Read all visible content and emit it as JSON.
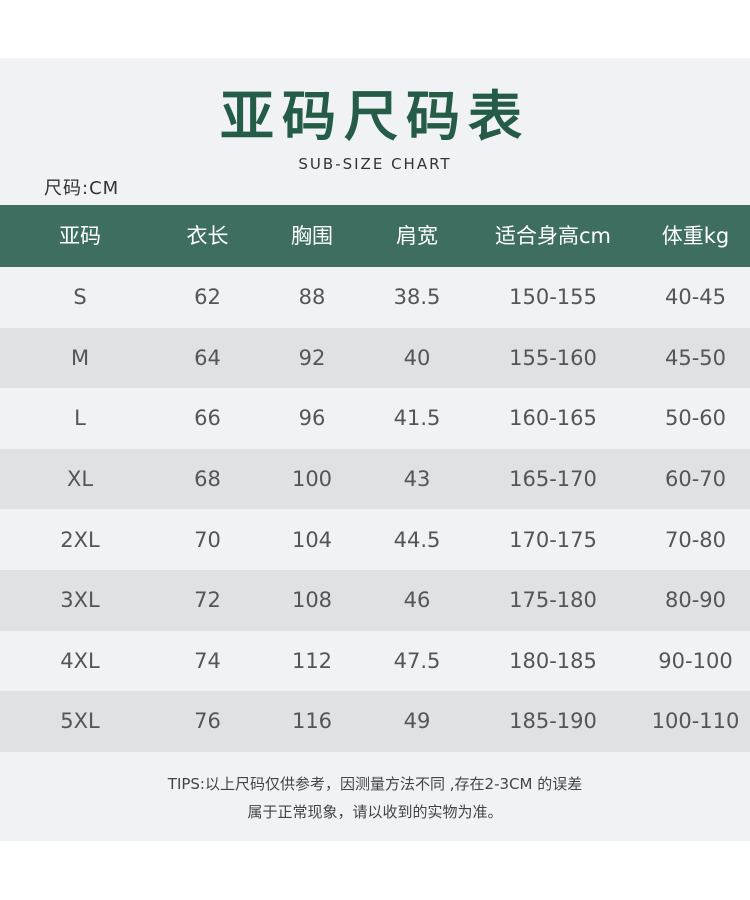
{
  "title": "亚码尺码表",
  "subtitle": "SUB-SIZE CHART",
  "unit_label": "尺码:CM",
  "colors": {
    "title": "#245c48",
    "header_bg": "#3e6e60",
    "row_alt": "#dfe1e4",
    "panel": "#f1f2f5"
  },
  "table": {
    "headers": [
      "亚码",
      "衣长",
      "胸围",
      "肩宽",
      "适合身高cm",
      "体重kg"
    ],
    "rows": [
      [
        "S",
        "62",
        "88",
        "38.5",
        "150-155",
        "40-45"
      ],
      [
        "M",
        "64",
        "92",
        "40",
        "155-160",
        "45-50"
      ],
      [
        "L",
        "66",
        "96",
        "41.5",
        "160-165",
        "50-60"
      ],
      [
        "XL",
        "68",
        "100",
        "43",
        "165-170",
        "60-70"
      ],
      [
        "2XL",
        "70",
        "104",
        "44.5",
        "170-175",
        "70-80"
      ],
      [
        "3XL",
        "72",
        "108",
        "46",
        "175-180",
        "80-90"
      ],
      [
        "4XL",
        "74",
        "112",
        "47.5",
        "180-185",
        "90-100"
      ],
      [
        "5XL",
        "76",
        "116",
        "49",
        "185-190",
        "100-110"
      ]
    ]
  },
  "tips": {
    "line1": "TIPS:以上尺码仅供参考，因测量方法不同 ,存在2-3CM 的误差",
    "line2": "属于正常现象，请以收到的实物为准。"
  }
}
